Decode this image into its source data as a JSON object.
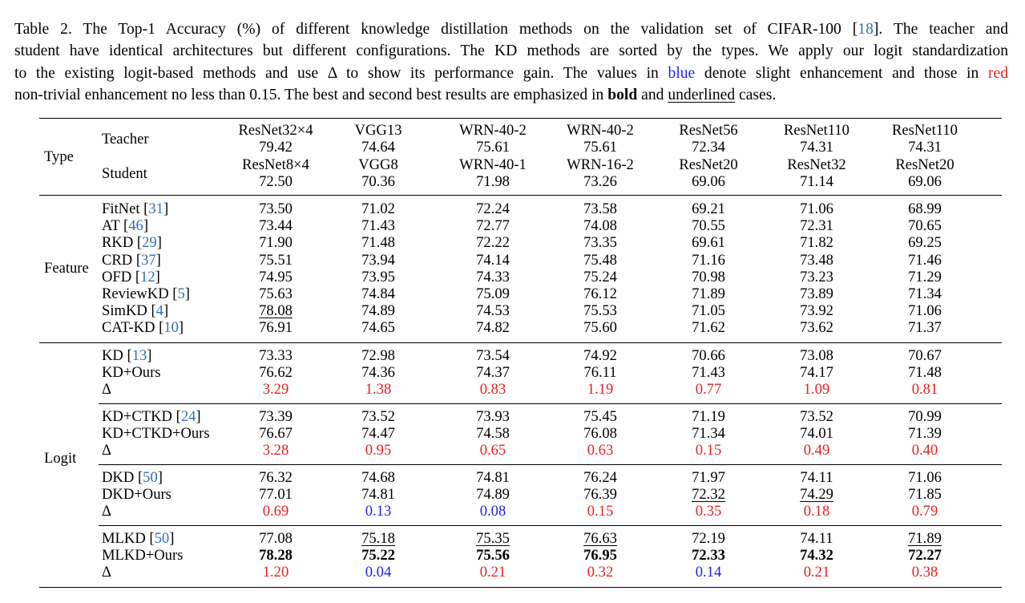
{
  "caption": {
    "lines": [
      [
        {
          "t": "Table 2. The Top-1 Accuracy (%) of different knowledge distillation methods on the validation set of CIFAR-100 ["
        },
        {
          "t": "18",
          "c": "cite"
        },
        {
          "t": "]. The teacher and"
        }
      ],
      [
        {
          "t": "student have identical architectures but different configurations. The KD methods are sorted by the types. We apply our logit standardization"
        }
      ],
      [
        {
          "t": "to the existing logit-based methods and use Δ to show its performance gain. The values in "
        },
        {
          "t": "blue",
          "c": "blue"
        },
        {
          "t": " denote slight enhancement and those in "
        },
        {
          "t": "red",
          "c": "red"
        }
      ],
      [
        {
          "t": "non-trivial enhancement no less than 0.15. The best and second best results are emphasized in "
        },
        {
          "t": "bold",
          "c": "b"
        },
        {
          "t": " and "
        },
        {
          "t": "underlined",
          "c": "u"
        },
        {
          "t": " cases."
        }
      ]
    ]
  },
  "header": {
    "type_label": "Type",
    "teacher_label": "Teacher",
    "student_label": "Student",
    "columns": [
      {
        "teacher": "ResNet32×4",
        "teacher_acc": "79.42",
        "student": "ResNet8×4",
        "student_acc": "72.50"
      },
      {
        "teacher": "VGG13",
        "teacher_acc": "74.64",
        "student": "VGG8",
        "student_acc": "70.36"
      },
      {
        "teacher": "WRN-40-2",
        "teacher_acc": "75.61",
        "student": "WRN-40-1",
        "student_acc": "71.98"
      },
      {
        "teacher": "WRN-40-2",
        "teacher_acc": "75.61",
        "student": "WRN-16-2",
        "student_acc": "73.26"
      },
      {
        "teacher": "ResNet56",
        "teacher_acc": "72.34",
        "student": "ResNet20",
        "student_acc": "69.06"
      },
      {
        "teacher": "ResNet110",
        "teacher_acc": "74.31",
        "student": "ResNet32",
        "student_acc": "71.14"
      },
      {
        "teacher": "ResNet110",
        "teacher_acc": "74.31",
        "student": "ResNet20",
        "student_acc": "69.06"
      }
    ]
  },
  "feature": {
    "label": "Feature",
    "rows": [
      {
        "name": "FitNet",
        "ref": "31",
        "vals": [
          "73.50",
          "71.02",
          "72.24",
          "73.58",
          "69.21",
          "71.06",
          "68.99"
        ]
      },
      {
        "name": "AT",
        "ref": "46",
        "vals": [
          "73.44",
          "71.43",
          "72.77",
          "74.08",
          "70.55",
          "72.31",
          "70.65"
        ]
      },
      {
        "name": "RKD",
        "ref": "29",
        "vals": [
          "71.90",
          "71.48",
          "72.22",
          "73.35",
          "69.61",
          "71.82",
          "69.25"
        ]
      },
      {
        "name": "CRD",
        "ref": "37",
        "vals": [
          "75.51",
          "73.94",
          "74.14",
          "75.48",
          "71.16",
          "73.48",
          "71.46"
        ]
      },
      {
        "name": "OFD",
        "ref": "12",
        "vals": [
          "74.95",
          "73.95",
          "74.33",
          "75.24",
          "70.98",
          "73.23",
          "71.29"
        ]
      },
      {
        "name": "ReviewKD",
        "ref": "5",
        "vals": [
          "75.63",
          "74.84",
          "75.09",
          "76.12",
          "71.89",
          "73.89",
          "71.34"
        ]
      },
      {
        "name": "SimKD",
        "ref": "4",
        "vals": [
          "78.08",
          "74.89",
          "74.53",
          "75.53",
          "71.05",
          "73.92",
          "71.06"
        ],
        "u": [
          0
        ]
      },
      {
        "name": "CAT-KD",
        "ref": "10",
        "vals": [
          "76.91",
          "74.65",
          "74.82",
          "75.60",
          "71.62",
          "73.62",
          "71.37"
        ]
      }
    ]
  },
  "logit": {
    "label": "Logit",
    "groups": [
      {
        "rows": [
          {
            "name": "KD",
            "ref": "13",
            "vals": [
              "73.33",
              "72.98",
              "73.54",
              "74.92",
              "70.66",
              "73.08",
              "70.67"
            ]
          },
          {
            "name": "KD+Ours",
            "vals": [
              "76.62",
              "74.36",
              "74.37",
              "76.11",
              "71.43",
              "74.17",
              "71.48"
            ]
          },
          {
            "name": "Δ",
            "vals": [
              "3.29",
              "1.38",
              "0.83",
              "1.19",
              "0.77",
              "1.09",
              "0.81"
            ],
            "colors": [
              "red",
              "red",
              "red",
              "red",
              "red",
              "red",
              "red"
            ]
          }
        ]
      },
      {
        "rows": [
          {
            "name": "KD+CTKD",
            "ref": "24",
            "vals": [
              "73.39",
              "73.52",
              "73.93",
              "75.45",
              "71.19",
              "73.52",
              "70.99"
            ]
          },
          {
            "name": "KD+CTKD+Ours",
            "vals": [
              "76.67",
              "74.47",
              "74.58",
              "76.08",
              "71.34",
              "74.01",
              "71.39"
            ]
          },
          {
            "name": "Δ",
            "vals": [
              "3.28",
              "0.95",
              "0.65",
              "0.63",
              "0.15",
              "0.49",
              "0.40"
            ],
            "colors": [
              "red",
              "red",
              "red",
              "red",
              "red",
              "red",
              "red"
            ]
          }
        ]
      },
      {
        "rows": [
          {
            "name": "DKD",
            "ref": "50",
            "vals": [
              "76.32",
              "74.68",
              "74.81",
              "76.24",
              "71.97",
              "74.11",
              "71.06"
            ]
          },
          {
            "name": "DKD+Ours",
            "vals": [
              "77.01",
              "74.81",
              "74.89",
              "76.39",
              "72.32",
              "74.29",
              "71.85"
            ],
            "u": [
              4,
              5
            ]
          },
          {
            "name": "Δ",
            "vals": [
              "0.69",
              "0.13",
              "0.08",
              "0.15",
              "0.35",
              "0.18",
              "0.79"
            ],
            "colors": [
              "red",
              "blue",
              "blue",
              "red",
              "red",
              "red",
              "red"
            ]
          }
        ]
      },
      {
        "rows": [
          {
            "name": "MLKD",
            "ref": "50",
            "vals": [
              "77.08",
              "75.18",
              "75.35",
              "76.63",
              "72.19",
              "74.11",
              "71.89"
            ],
            "u": [
              1,
              2,
              3,
              6
            ]
          },
          {
            "name": "MLKD+Ours",
            "vals": [
              "78.28",
              "75.22",
              "75.56",
              "76.95",
              "72.33",
              "74.32",
              "72.27"
            ],
            "b": [
              0,
              1,
              2,
              3,
              4,
              5,
              6
            ]
          },
          {
            "name": "Δ",
            "vals": [
              "1.20",
              "0.04",
              "0.21",
              "0.32",
              "0.14",
              "0.21",
              "0.38"
            ],
            "colors": [
              "red",
              "blue",
              "red",
              "red",
              "blue",
              "red",
              "red"
            ]
          }
        ]
      }
    ]
  },
  "colors": {
    "cite": "#2f6fb5",
    "blue": "#1f1fe6",
    "red": "#e61f1f"
  }
}
